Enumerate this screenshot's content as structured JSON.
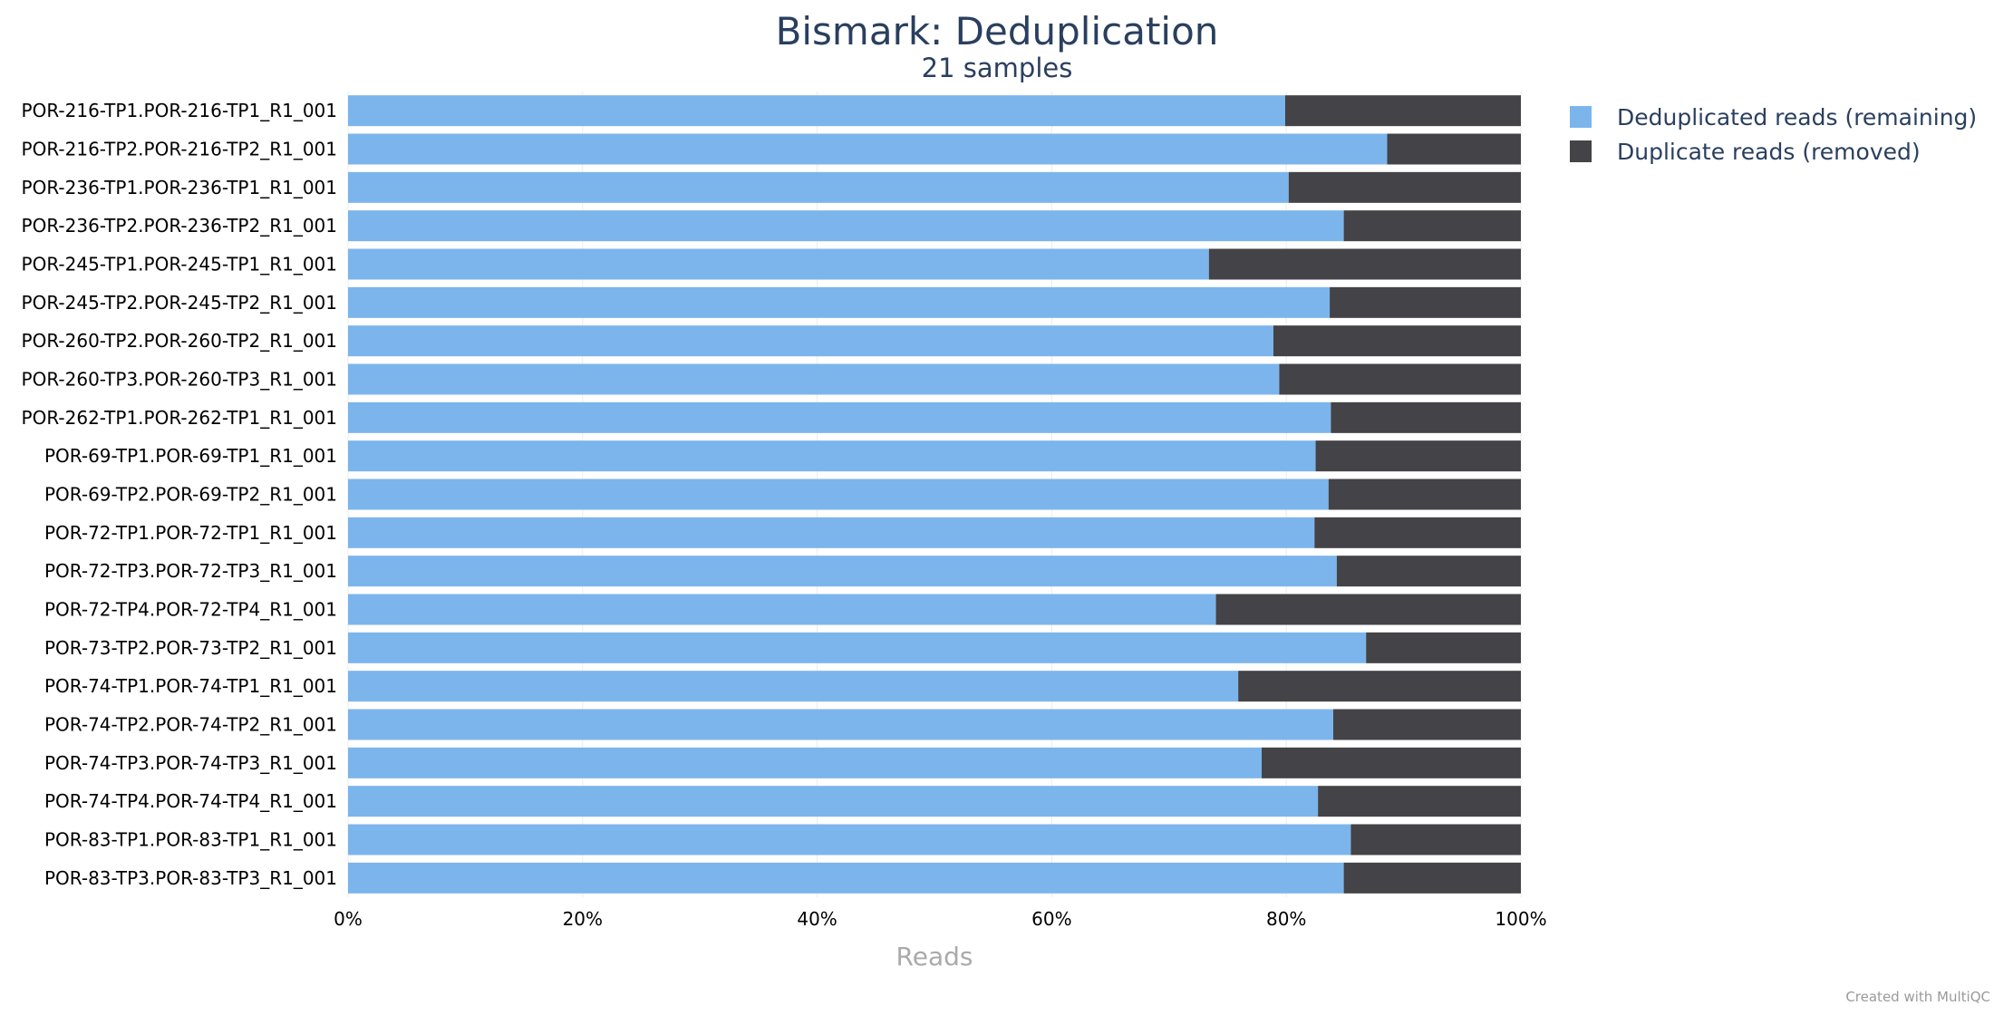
{
  "header": {
    "title": "Bismark: Deduplication",
    "subtitle": "21 samples"
  },
  "footer": {
    "credit": "Created with MultiQC"
  },
  "colors": {
    "deduplicated": "#7cb5ec",
    "duplicate": "#434348",
    "gridline": "#ececec"
  },
  "chart_data": {
    "type": "bar",
    "orientation": "horizontal",
    "stacked": true,
    "percentage": true,
    "categories": [
      "POR-216-TP1.POR-216-TP1_R1_001",
      "POR-216-TP2.POR-216-TP2_R1_001",
      "POR-236-TP1.POR-236-TP1_R1_001",
      "POR-236-TP2.POR-236-TP2_R1_001",
      "POR-245-TP1.POR-245-TP1_R1_001",
      "POR-245-TP2.POR-245-TP2_R1_001",
      "POR-260-TP2.POR-260-TP2_R1_001",
      "POR-260-TP3.POR-260-TP3_R1_001",
      "POR-262-TP1.POR-262-TP1_R1_001",
      "POR-69-TP1.POR-69-TP1_R1_001",
      "POR-69-TP2.POR-69-TP2_R1_001",
      "POR-72-TP1.POR-72-TP1_R1_001",
      "POR-72-TP3.POR-72-TP3_R1_001",
      "POR-72-TP4.POR-72-TP4_R1_001",
      "POR-73-TP2.POR-73-TP2_R1_001",
      "POR-74-TP1.POR-74-TP1_R1_001",
      "POR-74-TP2.POR-74-TP2_R1_001",
      "POR-74-TP3.POR-74-TP3_R1_001",
      "POR-74-TP4.POR-74-TP4_R1_001",
      "POR-83-TP1.POR-83-TP1_R1_001",
      "POR-83-TP3.POR-83-TP3_R1_001"
    ],
    "series": [
      {
        "name": "Deduplicated reads (remaining)",
        "color": "#7cb5ec",
        "values": [
          79.9,
          88.6,
          80.2,
          84.9,
          73.4,
          83.7,
          78.9,
          79.4,
          83.8,
          82.5,
          83.6,
          82.4,
          84.3,
          74.0,
          86.8,
          75.9,
          84.0,
          77.9,
          82.7,
          85.5,
          84.9
        ]
      },
      {
        "name": "Duplicate reads (removed)",
        "color": "#434348",
        "values": [
          20.1,
          11.4,
          19.8,
          15.1,
          26.6,
          16.3,
          21.1,
          20.6,
          16.2,
          17.5,
          16.4,
          17.6,
          15.7,
          26.0,
          13.2,
          24.1,
          16.0,
          22.1,
          17.3,
          14.5,
          15.1
        ]
      }
    ],
    "xlim": [
      0,
      100
    ],
    "xticks": [
      "0%",
      "20%",
      "40%",
      "60%",
      "80%",
      "100%"
    ],
    "xlabel": "Reads",
    "ylabel": "",
    "legend_position": "top-right",
    "grid": true
  }
}
